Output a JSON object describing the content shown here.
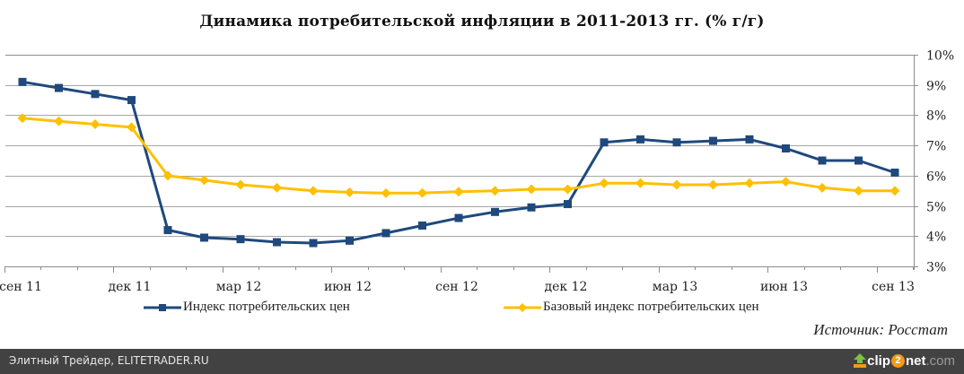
{
  "title": "Динамика потребительской инфляции в 2011-2013 гг. (% г/г)",
  "legend": {
    "series1": "Индекс потребительских цен",
    "series2": "Базовый индекс потребительских цен"
  },
  "source": "Источник: Росстат",
  "footer": {
    "left_text": "Элитный Трейдер, ELITETRADER.RU",
    "brand_part1": "clip",
    "brand_part2": "2",
    "brand_part3": "net",
    "brand_part4": ".com"
  },
  "colors": {
    "series1": "#1f497d",
    "series2": "#ffc000",
    "grid": "#a6a6a6",
    "footer_bg": "#424242"
  },
  "chart_data": {
    "type": "line",
    "title": "Динамика потребительской инфляции в 2011-2013 гг. (% г/г)",
    "xlabel": "",
    "ylabel": "",
    "ylim": [
      3,
      10
    ],
    "y_ticks": [
      "3%",
      "4%",
      "5%",
      "6%",
      "7%",
      "8%",
      "9%",
      "10%"
    ],
    "y_axis_position": "right",
    "grid": true,
    "legend_position": "bottom",
    "x_tick_labels": [
      "сен 11",
      "дек 11",
      "мар 12",
      "июн 12",
      "сен 12",
      "дек 12",
      "мар 13",
      "июн 13",
      "сен 13"
    ],
    "x": [
      "сен 11",
      "окт 11",
      "ноя 11",
      "дек 11",
      "янв 12",
      "фев 12",
      "мар 12",
      "апр 12",
      "май 12",
      "июн 12",
      "июл 12",
      "авг 12",
      "сен 12",
      "окт 12",
      "ноя 12",
      "дек 12",
      "янв 13",
      "фев 13",
      "мар 13",
      "апр 13",
      "май 13",
      "июн 13",
      "июл 13",
      "авг 13",
      "сен 13"
    ],
    "series": [
      {
        "name": "Индекс потребительских цен",
        "color": "#1f497d",
        "marker": "square",
        "values": [
          9.1,
          8.9,
          8.7,
          8.5,
          4.2,
          3.95,
          3.9,
          3.8,
          3.77,
          3.85,
          4.1,
          4.35,
          4.6,
          4.8,
          4.95,
          5.06,
          7.1,
          7.2,
          7.1,
          7.15,
          7.2,
          6.9,
          6.5,
          6.5,
          6.1
        ]
      },
      {
        "name": "Базовый индекс потребительских цен",
        "color": "#ffc000",
        "marker": "diamond",
        "values": [
          7.9,
          7.8,
          7.7,
          7.6,
          6.0,
          5.85,
          5.7,
          5.6,
          5.5,
          5.45,
          5.42,
          5.43,
          5.47,
          5.5,
          5.55,
          5.55,
          5.75,
          5.75,
          5.7,
          5.7,
          5.75,
          5.8,
          5.6,
          5.5,
          5.5
        ]
      }
    ],
    "annotations": [
      "Источник: Росстат"
    ]
  }
}
